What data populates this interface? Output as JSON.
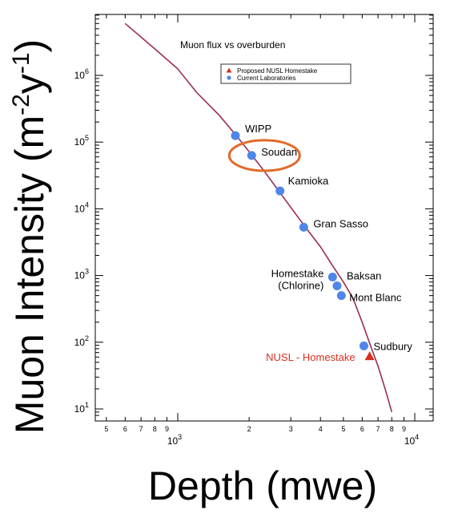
{
  "chart_data": {
    "type": "line",
    "title": "Muon flux vs overburden",
    "xlabel": "Depth (mwe)",
    "ylabel_main": "Muon Intensity (m",
    "ylabel_exp1": "-2",
    "ylabel_mid": "y",
    "ylabel_exp2": "-1",
    "ylabel_end": ")",
    "xscale": "log",
    "yscale": "log",
    "xlim": [
      400,
      10000
    ],
    "ylim": [
      8,
      8000000
    ],
    "grid": false,
    "legend_position": "top-right",
    "x_major_ticks": [
      {
        "value": 1000,
        "base": "10",
        "exp": "3"
      },
      {
        "value": 10000,
        "base": "10",
        "exp": "4"
      }
    ],
    "x_minor_ticks": [
      {
        "value": 500,
        "label": "5"
      },
      {
        "value": 600,
        "label": "6"
      },
      {
        "value": 700,
        "label": "7"
      },
      {
        "value": 800,
        "label": "8"
      },
      {
        "value": 900,
        "label": "9"
      },
      {
        "value": 2000,
        "label": "2"
      },
      {
        "value": 3000,
        "label": "3"
      },
      {
        "value": 4000,
        "label": "4"
      },
      {
        "value": 5000,
        "label": "5"
      },
      {
        "value": 6000,
        "label": "6"
      },
      {
        "value": 7000,
        "label": "7"
      },
      {
        "value": 8000,
        "label": "8"
      },
      {
        "value": 9000,
        "label": "9"
      }
    ],
    "y_major_ticks": [
      {
        "value": 10,
        "base": "10",
        "exp": "1"
      },
      {
        "value": 100,
        "base": "10",
        "exp": "2"
      },
      {
        "value": 1000,
        "base": "10",
        "exp": "3"
      },
      {
        "value": 10000,
        "base": "10",
        "exp": "4"
      },
      {
        "value": 100000,
        "base": "10",
        "exp": "5"
      },
      {
        "value": 1000000,
        "base": "10",
        "exp": "6"
      }
    ],
    "curve": {
      "color": "#9b2d52",
      "x": [
        600,
        800,
        1000,
        1200,
        1500,
        1800,
        2000,
        2300,
        2600,
        3000,
        3500,
        4000,
        4500,
        5000,
        5500,
        6000,
        6500,
        7000,
        7500,
        8000
      ],
      "y": [
        6000000,
        2500000,
        1250000,
        560000,
        250000,
        115000,
        72000,
        38000,
        21000,
        10500,
        5000,
        2700,
        1400,
        800,
        450,
        200,
        90,
        44,
        20,
        9
      ]
    },
    "legend": [
      {
        "label": "Proposed NUSL Homestake",
        "marker": "triangle",
        "color": "#d7301f"
      },
      {
        "label": "Current Laboratories",
        "marker": "circle",
        "color": "#4f86e8"
      }
    ],
    "series": [
      {
        "name": "Current Laboratories",
        "marker": "circle",
        "color": "#4f86e8",
        "points": [
          {
            "label": "WIPP",
            "x": 1750,
            "y": 125000
          },
          {
            "label": "Soudan",
            "x": 2050,
            "y": 63000
          },
          {
            "label": "Kamioka",
            "x": 2700,
            "y": 18500
          },
          {
            "label": "Gran Sasso",
            "x": 3400,
            "y": 5300
          },
          {
            "label": "Homestake\n(Chlorine)",
            "x": 4500,
            "y": 950
          },
          {
            "label": "Baksan",
            "x": 4700,
            "y": 700
          },
          {
            "label": "Mont Blanc",
            "x": 4900,
            "y": 500
          },
          {
            "label": "Sudbury",
            "x": 6100,
            "y": 88
          }
        ]
      },
      {
        "name": "Proposed NUSL Homestake",
        "marker": "triangle",
        "color": "#d7301f",
        "points": [
          {
            "label": "NUSL - Homestake",
            "x": 6450,
            "y": 62
          }
        ]
      }
    ],
    "highlight": {
      "label": "Soudan",
      "shape": "ellipse",
      "color": "#e06a2a"
    }
  }
}
